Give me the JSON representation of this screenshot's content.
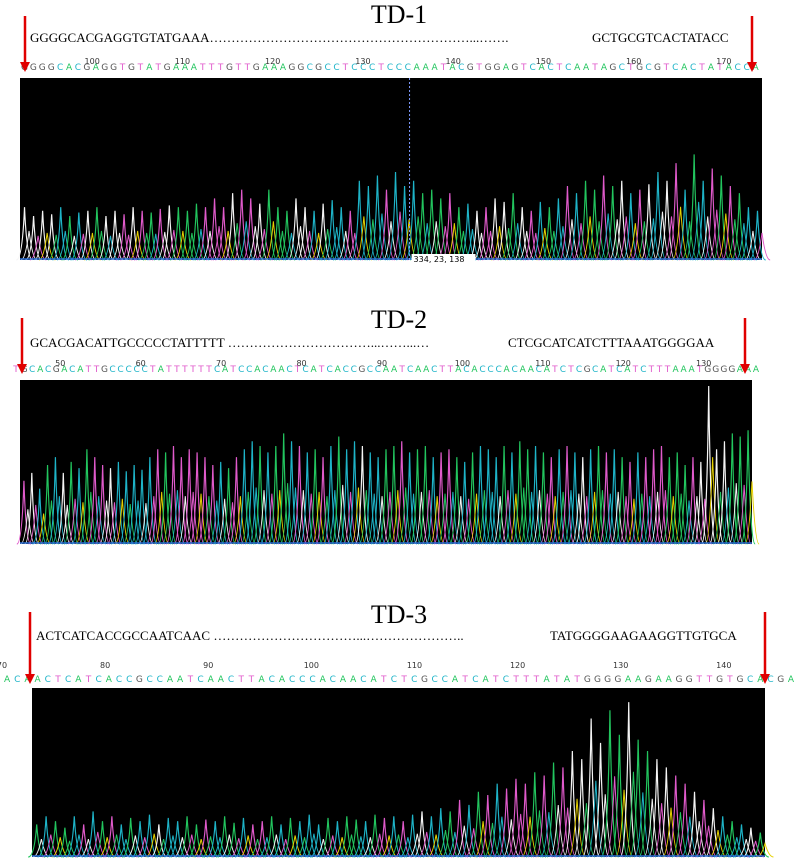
{
  "colors": {
    "A": "#22c55e",
    "C": "#1eb4c8",
    "G": "#f5f5f5",
    "T": "#e05acb",
    "Y": "#e6d100",
    "arrow": "#e00000",
    "trace_bg": "#000000"
  },
  "chart_data": [
    {
      "type": "line",
      "title": "TD-1",
      "sequence_left": "GGGGCACGAGGTGTATGAAA……………………………………………………...…….",
      "sequence_right": "GCTGCGTCACTATACC",
      "base_calls": "GGGGCACGAGGTGTATGAAATTTGTTGAAAGGCGCCTCCCTCCCAAATACGTGGAGTCACTCAATAGCTGCGTCACTATACCA",
      "tick_labels": [
        "100",
        "110",
        "120",
        "130",
        "140",
        "150",
        "160",
        "170"
      ],
      "cursor_label": "334, 23, 138",
      "x_range": [
        92,
        174
      ],
      "peak_profile": [
        0.3,
        0.25,
        0.28,
        0.26,
        0.3,
        0.25,
        0.27,
        0.28,
        0.3,
        0.25,
        0.28,
        0.26,
        0.3,
        0.28,
        0.27,
        0.29,
        0.31,
        0.3,
        0.28,
        0.32,
        0.3,
        0.35,
        0.3,
        0.38,
        0.4,
        0.35,
        0.32,
        0.4,
        0.3,
        0.28,
        0.35,
        0.3,
        0.28,
        0.32,
        0.34,
        0.3,
        0.28,
        0.45,
        0.42,
        0.48,
        0.4,
        0.5,
        0.42,
        0.45,
        0.38,
        0.4,
        0.35,
        0.38,
        0.3,
        0.32,
        0.28,
        0.3,
        0.35,
        0.33,
        0.38,
        0.3,
        0.28,
        0.33,
        0.3,
        0.35,
        0.42,
        0.38,
        0.45,
        0.4,
        0.48,
        0.42,
        0.45,
        0.38,
        0.4,
        0.43,
        0.5,
        0.45,
        0.55,
        0.4,
        0.6,
        0.45,
        0.52,
        0.48,
        0.42,
        0.38,
        0.3,
        0.28
      ]
    },
    {
      "type": "line",
      "title": "TD-2",
      "sequence_left": "GCACGACATTGCCCCCTATTTTT ……………………………...……...…",
      "sequence_right": "CTCGCATCATCTTTAAATGGGGAA",
      "base_calls": "TGCACGACATTGCCCCCTATTTTTTCATCCACAACTCATCACCGCCAATCAACTTACACCCACAACATCTCGCATCATCTTTAAATGGGGAAA",
      "tick_labels": [
        "50",
        "60",
        "70",
        "80",
        "90",
        "100",
        "110",
        "120",
        "130"
      ],
      "x_range": [
        44,
        137
      ],
      "peak_profile": [
        0.4,
        0.45,
        0.35,
        0.5,
        0.55,
        0.45,
        0.52,
        0.48,
        0.6,
        0.55,
        0.5,
        0.48,
        0.52,
        0.46,
        0.5,
        0.47,
        0.55,
        0.6,
        0.58,
        0.62,
        0.55,
        0.6,
        0.58,
        0.55,
        0.5,
        0.52,
        0.48,
        0.55,
        0.6,
        0.65,
        0.62,
        0.58,
        0.62,
        0.7,
        0.65,
        0.62,
        0.58,
        0.6,
        0.55,
        0.62,
        0.68,
        0.6,
        0.65,
        0.62,
        0.58,
        0.55,
        0.6,
        0.62,
        0.65,
        0.58,
        0.6,
        0.62,
        0.55,
        0.58,
        0.6,
        0.55,
        0.52,
        0.58,
        0.62,
        0.6,
        0.55,
        0.62,
        0.58,
        0.65,
        0.6,
        0.62,
        0.58,
        0.55,
        0.6,
        0.62,
        0.58,
        0.55,
        0.6,
        0.62,
        0.58,
        0.6,
        0.55,
        0.52,
        0.58,
        0.55,
        0.6,
        0.62,
        0.55,
        0.58,
        0.5,
        0.55,
        0.52,
        1.0,
        0.6,
        0.65,
        0.7,
        0.68,
        0.72
      ]
    },
    {
      "type": "line",
      "title": "TD-3",
      "sequence_left": "ACTCATCACCGCCAATCAAC ……………………………...…………………..",
      "sequence_right": "TATGGGGAAGAAGGTTGTGCA",
      "base_calls": "ACAACTCATCACCGCCAATCAACTTACACCCACAACATCTCGCCATCATCTTTATATGGGGAAGAAGGTTGTGCACGA",
      "tick_labels": [
        "70",
        "80",
        "90",
        "100",
        "110",
        "120",
        "130",
        "140"
      ],
      "x_range": [
        70,
        147
      ],
      "peak_profile": [
        0.2,
        0.25,
        0.22,
        0.18,
        0.25,
        0.2,
        0.28,
        0.22,
        0.25,
        0.2,
        0.24,
        0.22,
        0.26,
        0.2,
        0.24,
        0.22,
        0.25,
        0.2,
        0.23,
        0.22,
        0.25,
        0.21,
        0.24,
        0.2,
        0.22,
        0.25,
        0.2,
        0.24,
        0.22,
        0.26,
        0.2,
        0.24,
        0.22,
        0.25,
        0.23,
        0.22,
        0.26,
        0.24,
        0.25,
        0.22,
        0.26,
        0.28,
        0.25,
        0.3,
        0.28,
        0.35,
        0.32,
        0.4,
        0.38,
        0.45,
        0.42,
        0.48,
        0.45,
        0.52,
        0.5,
        0.58,
        0.55,
        0.65,
        0.6,
        0.85,
        0.7,
        0.9,
        0.75,
        0.95,
        0.72,
        0.65,
        0.6,
        0.55,
        0.5,
        0.45,
        0.4,
        0.35,
        0.3,
        0.25,
        0.22,
        0.2,
        0.18,
        0.15
      ]
    }
  ]
}
